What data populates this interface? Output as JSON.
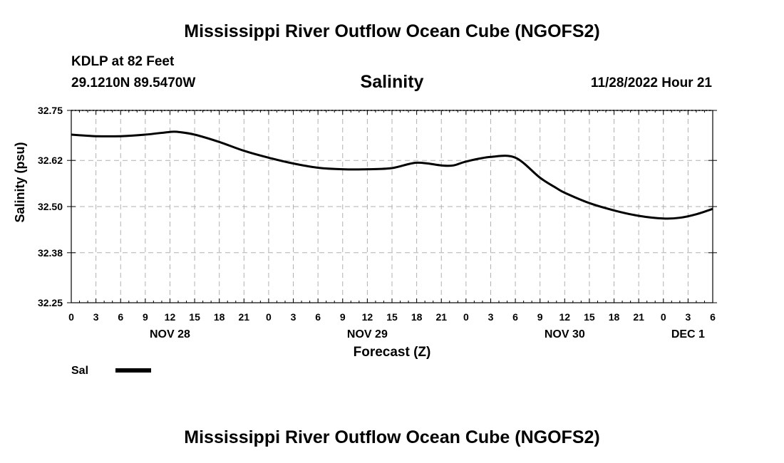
{
  "page": {
    "title_top": "Mississippi River Outflow Ocean Cube (NGOFS2)",
    "title_bottom": "Mississippi River Outflow Ocean Cube (NGOFS2)",
    "station": "KDLP at 82 Feet",
    "coords": "29.1210N  89.5470W",
    "timestamp": "11/28/2022 Hour 21"
  },
  "legend": {
    "label": "Sal",
    "color": "#000000"
  },
  "chart_data": {
    "type": "line",
    "title": "Salinity",
    "xlabel": "Forecast (Z)",
    "ylabel": "Salinity (psu)",
    "xlim": [
      0,
      78
    ],
    "ylim": [
      32.25,
      32.75
    ],
    "yticks": [
      32.25,
      32.38,
      32.5,
      32.62,
      32.75
    ],
    "ytick_labels": [
      "32.25",
      "32.38",
      "32.50",
      "32.62",
      "32.75"
    ],
    "xticks": [
      0,
      3,
      6,
      9,
      12,
      15,
      18,
      21,
      24,
      27,
      30,
      33,
      36,
      39,
      42,
      45,
      48,
      51,
      54,
      57,
      60,
      63,
      66,
      69,
      72,
      75,
      78
    ],
    "xtick_labels": [
      "0",
      "3",
      "6",
      "9",
      "12",
      "15",
      "18",
      "21",
      "0",
      "3",
      "6",
      "9",
      "12",
      "15",
      "18",
      "21",
      "0",
      "3",
      "6",
      "9",
      "12",
      "15",
      "18",
      "21",
      "0",
      "3",
      "6"
    ],
    "day_labels": [
      {
        "x": 12,
        "label": "NOV 28"
      },
      {
        "x": 36,
        "label": "NOV 29"
      },
      {
        "x": 60,
        "label": "NOV 30"
      },
      {
        "x": 75,
        "label": "DEC 1"
      }
    ],
    "grid": true,
    "series": [
      {
        "name": "Sal",
        "x": [
          0,
          3,
          6,
          9,
          12,
          13,
          15,
          18,
          21,
          24,
          27,
          30,
          33,
          36,
          39,
          42,
          45,
          46.5,
          48,
          51,
          54,
          57,
          59,
          60,
          63,
          66,
          69,
          72,
          74,
          76,
          78
        ],
        "y": [
          32.687,
          32.683,
          32.683,
          32.687,
          32.694,
          32.694,
          32.687,
          32.668,
          32.645,
          32.627,
          32.612,
          32.601,
          32.597,
          32.597,
          32.6,
          32.614,
          32.607,
          32.607,
          32.617,
          32.629,
          32.627,
          32.575,
          32.548,
          32.536,
          32.509,
          32.49,
          32.476,
          32.469,
          32.471,
          32.48,
          32.494
        ]
      }
    ]
  }
}
